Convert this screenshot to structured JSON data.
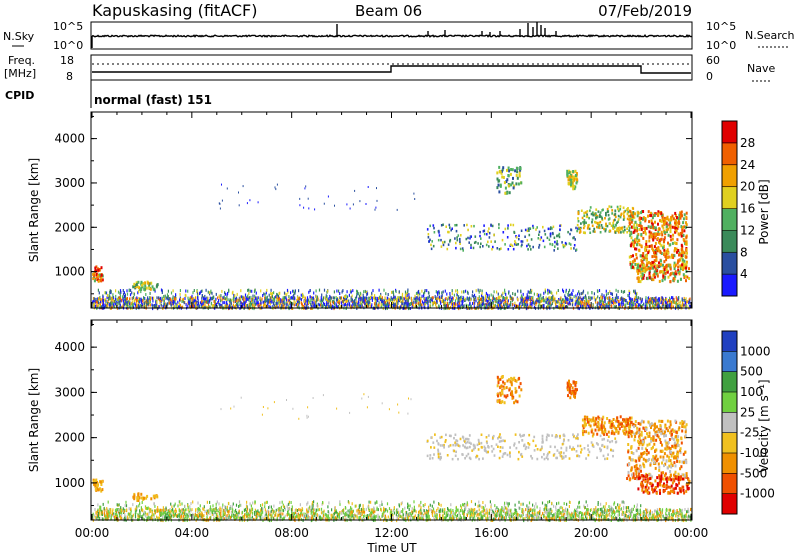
{
  "header": {
    "station": "Kapuskasing (fitACF)",
    "beam": "Beam 06",
    "date": "07/Feb/2019"
  },
  "strip": {
    "nsky_label": "N.Sky",
    "nsearch_label": "N.Search",
    "freq_label_1": "Freq.",
    "freq_label_2": "[MHz]",
    "nave_label": "Nave",
    "cpid_label": "CPID",
    "cpid_value": "normal (fast) 151",
    "nsky_ticks": [
      "10^5",
      "10^0"
    ],
    "nsearch_ticks": [
      "10^5",
      "10^0"
    ],
    "freq_ticks": [
      "18",
      "8"
    ],
    "nave_ticks": [
      "60",
      "0"
    ]
  },
  "chart_data": [
    {
      "type": "heatmap",
      "name": "power",
      "ylabel": "Slant Range [km]",
      "ylim": [
        180,
        4600
      ],
      "yticks": [
        "1000",
        "2000",
        "3000",
        "4000"
      ],
      "colorbar_label": "Power [dB]",
      "colorbar_ticks": [
        "4",
        "8",
        "12",
        "16",
        "20",
        "24",
        "28"
      ],
      "colors": [
        "#1a1aff",
        "#2a4fa0",
        "#3a8a5a",
        "#50b060",
        "#e0d020",
        "#f0a000",
        "#f06000",
        "#e00000"
      ],
      "echo_regions": [
        {
          "t": [
            0.0,
            24.0
          ],
          "range": [
            200,
            600
          ],
          "level": "mixed low-high"
        },
        {
          "t": [
            1.6,
            2.6
          ],
          "range": [
            600,
            800
          ],
          "level": "12-20"
        },
        {
          "t": [
            16.2,
            17.4
          ],
          "range": [
            2800,
            3400
          ],
          "level": "12-20"
        },
        {
          "t": [
            13.4,
            23.8
          ],
          "range": [
            1500,
            2500
          ],
          "level": "8-28"
        },
        {
          "t": [
            21.5,
            23.9
          ],
          "range": [
            800,
            2600
          ],
          "level": "16-28"
        }
      ]
    },
    {
      "type": "heatmap",
      "name": "velocity",
      "xlabel": "Time UT",
      "xticks": [
        "00:00",
        "04:00",
        "08:00",
        "12:00",
        "16:00",
        "20:00",
        "00:00"
      ],
      "ylabel": "Slant Range [km]",
      "ylim": [
        180,
        4600
      ],
      "yticks": [
        "1000",
        "2000",
        "3000",
        "4000"
      ],
      "colorbar_label": "Velocity [m s⁻¹]",
      "colorbar_ticks": [
        "1000",
        "500",
        "100",
        "25",
        "-25",
        "-100",
        "-500",
        "-1000"
      ],
      "colors": [
        "#2040c0",
        "#3a7ad0",
        "#40a040",
        "#70d040",
        "#c0c0c0",
        "#f0c020",
        "#f09000",
        "#f05000",
        "#e00000"
      ],
      "echo_regions": [
        {
          "t": [
            0.0,
            24.0
          ],
          "range": [
            200,
            600
          ],
          "velocity": "100 to -100"
        },
        {
          "t": [
            16.2,
            17.4
          ],
          "range": [
            2800,
            3400
          ],
          "velocity": "-100 to -500"
        },
        {
          "t": [
            13.4,
            20.8
          ],
          "range": [
            1500,
            2100
          ],
          "velocity": "-25 to 25"
        },
        {
          "t": [
            20.4,
            23.9
          ],
          "range": [
            800,
            2400
          ],
          "velocity": "-100 to -1000"
        }
      ]
    }
  ]
}
